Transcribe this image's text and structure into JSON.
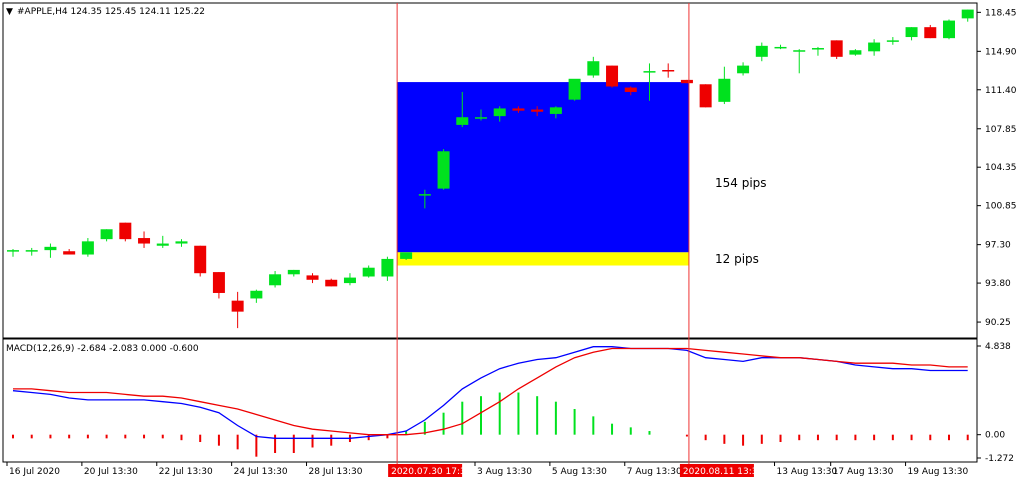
{
  "header": {
    "symbol_line": "#APPLE,H4  124.35 125.45 124.11 125.22",
    "dropdown_glyph": "▼"
  },
  "colors": {
    "bull": "#00e11e",
    "bear": "#ee0000",
    "zone_blue": "#0000ff",
    "zone_yellow": "#ffff00",
    "macd_line": "#0000ff",
    "signal_line": "#ee0000",
    "vline": "#ee3333",
    "date_highlight_bg": "#ee0000"
  },
  "chart_data": [
    {
      "type": "candlestick",
      "title": "#APPLE,H4",
      "ylim": [
        88.8,
        119.3
      ],
      "y_ticks": [
        "118.45",
        "114.90",
        "111.40",
        "107.85",
        "104.35",
        "100.85",
        "97.30",
        "93.80",
        "90.25"
      ],
      "candles": [
        {
          "o": 96.7,
          "h": 96.9,
          "l": 96.2,
          "c": 96.8
        },
        {
          "o": 96.7,
          "h": 97.0,
          "l": 96.3,
          "c": 96.8
        },
        {
          "o": 96.8,
          "h": 97.4,
          "l": 96.1,
          "c": 97.1
        },
        {
          "o": 96.7,
          "h": 96.9,
          "l": 96.4,
          "c": 96.4
        },
        {
          "o": 96.4,
          "h": 97.9,
          "l": 96.2,
          "c": 97.6
        },
        {
          "o": 97.8,
          "h": 98.7,
          "l": 97.6,
          "c": 98.7
        },
        {
          "o": 99.3,
          "h": 99.3,
          "l": 97.6,
          "c": 97.8
        },
        {
          "o": 97.9,
          "h": 98.5,
          "l": 97.0,
          "c": 97.4
        },
        {
          "o": 97.2,
          "h": 98.1,
          "l": 97.0,
          "c": 97.4
        },
        {
          "o": 97.4,
          "h": 97.8,
          "l": 97.1,
          "c": 97.6
        },
        {
          "o": 97.2,
          "h": 97.2,
          "l": 94.4,
          "c": 94.7
        },
        {
          "o": 94.8,
          "h": 94.8,
          "l": 92.4,
          "c": 92.9
        },
        {
          "o": 92.2,
          "h": 93.0,
          "l": 89.7,
          "c": 91.2
        },
        {
          "o": 92.4,
          "h": 93.2,
          "l": 92.0,
          "c": 93.1
        },
        {
          "o": 93.6,
          "h": 94.9,
          "l": 93.4,
          "c": 94.6
        },
        {
          "o": 94.6,
          "h": 95.0,
          "l": 94.4,
          "c": 95.0
        },
        {
          "o": 94.5,
          "h": 94.7,
          "l": 93.8,
          "c": 94.1
        },
        {
          "o": 94.1,
          "h": 94.2,
          "l": 93.5,
          "c": 93.5
        },
        {
          "o": 93.8,
          "h": 94.7,
          "l": 93.6,
          "c": 94.3
        },
        {
          "o": 94.4,
          "h": 95.4,
          "l": 94.3,
          "c": 95.2
        },
        {
          "o": 94.4,
          "h": 96.2,
          "l": 94.0,
          "c": 96.0
        },
        {
          "o": 96.0,
          "h": 96.5,
          "l": 95.9,
          "c": 96.6
        },
        {
          "o": 101.9,
          "h": 102.3,
          "l": 100.6,
          "c": 101.9
        },
        {
          "o": 102.4,
          "h": 106.0,
          "l": 102.3,
          "c": 105.8
        },
        {
          "o": 108.2,
          "h": 111.2,
          "l": 108.0,
          "c": 108.9
        },
        {
          "o": 108.9,
          "h": 109.6,
          "l": 108.6,
          "c": 108.9
        },
        {
          "o": 109.0,
          "h": 109.9,
          "l": 108.5,
          "c": 109.7
        },
        {
          "o": 109.7,
          "h": 109.9,
          "l": 109.3,
          "c": 109.5
        },
        {
          "o": 109.6,
          "h": 109.9,
          "l": 109.0,
          "c": 109.4
        },
        {
          "o": 109.2,
          "h": 109.9,
          "l": 108.8,
          "c": 109.8
        },
        {
          "o": 110.5,
          "h": 112.1,
          "l": 110.4,
          "c": 112.4
        },
        {
          "o": 112.7,
          "h": 114.4,
          "l": 112.5,
          "c": 114.0
        },
        {
          "o": 113.6,
          "h": 113.6,
          "l": 111.6,
          "c": 111.7
        },
        {
          "o": 111.6,
          "h": 111.7,
          "l": 110.9,
          "c": 111.2
        },
        {
          "o": 113.0,
          "h": 113.8,
          "l": 110.4,
          "c": 113.1
        },
        {
          "o": 113.2,
          "h": 113.8,
          "l": 112.5,
          "c": 113.1
        },
        {
          "o": 112.3,
          "h": 112.3,
          "l": 112.0,
          "c": 112.0
        },
        {
          "o": 111.9,
          "h": 111.9,
          "l": 109.8,
          "c": 109.8
        },
        {
          "o": 110.3,
          "h": 113.5,
          "l": 110.1,
          "c": 112.4
        },
        {
          "o": 112.9,
          "h": 113.9,
          "l": 112.7,
          "c": 113.6
        },
        {
          "o": 114.4,
          "h": 115.7,
          "l": 114.0,
          "c": 115.4
        },
        {
          "o": 115.3,
          "h": 115.5,
          "l": 115.1,
          "c": 115.3
        },
        {
          "o": 115.0,
          "h": 115.1,
          "l": 112.9,
          "c": 115.0
        },
        {
          "o": 115.1,
          "h": 115.3,
          "l": 114.5,
          "c": 115.2
        },
        {
          "o": 115.9,
          "h": 115.9,
          "l": 114.2,
          "c": 114.4
        },
        {
          "o": 114.6,
          "h": 115.1,
          "l": 114.5,
          "c": 115.0
        },
        {
          "o": 114.9,
          "h": 116.0,
          "l": 114.5,
          "c": 115.7
        },
        {
          "o": 115.8,
          "h": 116.2,
          "l": 115.5,
          "c": 115.9
        },
        {
          "o": 116.2,
          "h": 117.1,
          "l": 115.9,
          "c": 117.1
        },
        {
          "o": 117.1,
          "h": 117.3,
          "l": 116.1,
          "c": 116.1
        },
        {
          "o": 116.1,
          "h": 117.8,
          "l": 116.0,
          "c": 117.7
        },
        {
          "o": 117.9,
          "h": 118.7,
          "l": 117.6,
          "c": 118.7
        }
      ],
      "zones": [
        {
          "name": "blue",
          "top": 112.1,
          "bottom": 96.6,
          "label": "154 pips",
          "from_bar": 21,
          "to_bar": 36
        },
        {
          "name": "yellow",
          "top": 96.6,
          "bottom": 95.4,
          "label": "12 pips",
          "from_bar": 21,
          "to_bar": 36
        }
      ],
      "vlines_at_bar": [
        21,
        36
      ]
    },
    {
      "type": "macd",
      "title": "MACD(12,26,9) -2.684 -2.083 0.000 -0.600",
      "ylim": [
        -1.272,
        4.838
      ],
      "y_ticks": [
        "4.838",
        "0.00",
        "-1.272"
      ],
      "macd": [
        2.4,
        2.3,
        2.2,
        2.0,
        1.9,
        1.9,
        1.9,
        1.9,
        1.8,
        1.7,
        1.5,
        1.2,
        0.5,
        -0.1,
        -0.2,
        -0.2,
        -0.2,
        -0.2,
        -0.2,
        -0.1,
        0.0,
        0.2,
        0.8,
        1.6,
        2.5,
        3.1,
        3.6,
        3.9,
        4.1,
        4.2,
        4.5,
        4.8,
        4.8,
        4.7,
        4.7,
        4.7,
        4.6,
        4.2,
        4.1,
        4.0,
        4.2,
        4.2,
        4.2,
        4.1,
        4.0,
        3.8,
        3.7,
        3.6,
        3.6,
        3.5,
        3.5,
        3.5
      ],
      "signal": [
        2.5,
        2.5,
        2.4,
        2.3,
        2.3,
        2.3,
        2.2,
        2.1,
        2.1,
        2.0,
        1.8,
        1.6,
        1.4,
        1.1,
        0.8,
        0.5,
        0.3,
        0.2,
        0.1,
        0.0,
        0.0,
        0.0,
        0.1,
        0.3,
        0.6,
        1.2,
        1.8,
        2.5,
        3.1,
        3.7,
        4.2,
        4.5,
        4.7,
        4.7,
        4.7,
        4.7,
        4.7,
        4.6,
        4.5,
        4.4,
        4.3,
        4.2,
        4.2,
        4.1,
        4.0,
        3.9,
        3.9,
        3.9,
        3.8,
        3.8,
        3.7,
        3.7
      ],
      "histogram": [
        -0.2,
        -0.2,
        -0.2,
        -0.2,
        -0.2,
        -0.2,
        -0.2,
        -0.2,
        -0.2,
        -0.3,
        -0.4,
        -0.6,
        -0.8,
        -1.2,
        -1.0,
        -1.0,
        -0.7,
        -0.6,
        -0.4,
        -0.3,
        -0.2,
        0.2,
        0.7,
        1.2,
        1.8,
        2.1,
        2.3,
        2.3,
        2.1,
        1.8,
        1.4,
        1.0,
        0.6,
        0.4,
        0.2,
        0.0,
        -0.1,
        -0.3,
        -0.5,
        -0.6,
        -0.5,
        -0.4,
        -0.3,
        -0.3,
        -0.3,
        -0.3,
        -0.3,
        -0.3,
        -0.3,
        -0.3,
        -0.3,
        -0.3
      ]
    }
  ],
  "time_axis": {
    "labels": [
      {
        "text": "16 Jul 2020",
        "bar": 0,
        "highlight": false
      },
      {
        "text": "20 Jul 13:30",
        "bar": 4,
        "highlight": false
      },
      {
        "text": "22 Jul 13:30",
        "bar": 8,
        "highlight": false
      },
      {
        "text": "24 Jul 13:30",
        "bar": 12,
        "highlight": false
      },
      {
        "text": "28 Jul 13:30",
        "bar": 16,
        "highlight": false
      },
      {
        "text": "2020.07.30 17:30",
        "bar": 21,
        "highlight": true
      },
      {
        "text": "3 Aug 13:30",
        "bar": 25,
        "highlight": false
      },
      {
        "text": "5 Aug 13:30",
        "bar": 29,
        "highlight": false
      },
      {
        "text": "7 Aug 13:30",
        "bar": 33,
        "highlight": false
      },
      {
        "text": "2020.08.11 13:30",
        "bar": 36,
        "highlight": true
      },
      {
        "text": "13 Aug 13:30",
        "bar": 41,
        "highlight": false
      },
      {
        "text": "17 Aug 13:30",
        "bar": 44,
        "highlight": false
      },
      {
        "text": "19 Aug 13:30",
        "bar": 48,
        "highlight": false
      }
    ]
  }
}
